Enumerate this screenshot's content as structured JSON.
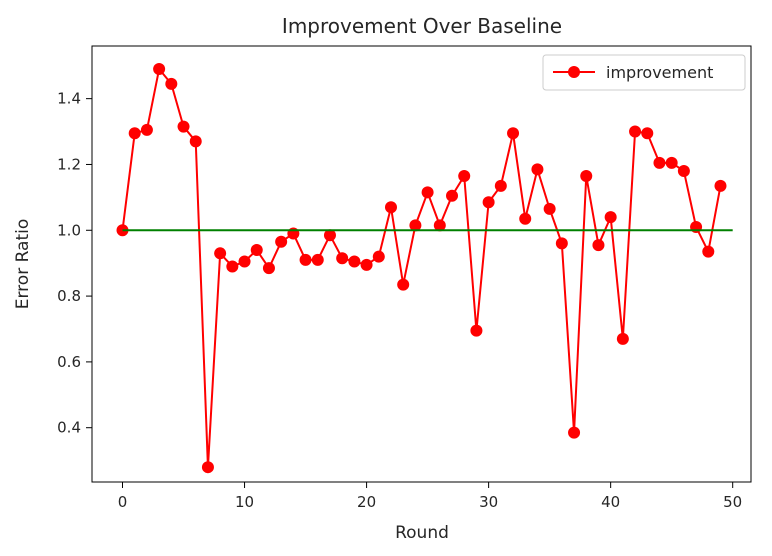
{
  "chart_data": {
    "type": "line",
    "title": "Improvement Over Baseline",
    "xlabel": "Round",
    "ylabel": "Error Ratio",
    "xlim": [
      -2.5,
      51.5
    ],
    "ylim": [
      0.235,
      1.56
    ],
    "xticks": [
      0,
      10,
      20,
      30,
      40,
      50
    ],
    "yticks": [
      0.4,
      0.6,
      0.8,
      1.0,
      1.2,
      1.4
    ],
    "ytick_labels": [
      "0.4",
      "0.6",
      "0.8",
      "1.0",
      "1.2",
      "1.4"
    ],
    "grid": false,
    "legend": {
      "placement": "top-right",
      "entries": [
        "improvement"
      ]
    },
    "series": [
      {
        "name": "improvement",
        "color": "#ff0000",
        "marker": "circle",
        "x": [
          0,
          1,
          2,
          3,
          4,
          5,
          6,
          7,
          8,
          9,
          10,
          11,
          12,
          13,
          14,
          15,
          16,
          17,
          18,
          19,
          20,
          21,
          22,
          23,
          24,
          25,
          26,
          27,
          28,
          29,
          30,
          31,
          32,
          33,
          34,
          35,
          36,
          37,
          38,
          39,
          40,
          41,
          42,
          43,
          44,
          45,
          46,
          47,
          48,
          49
        ],
        "values": [
          1.0,
          1.295,
          1.305,
          1.49,
          1.445,
          1.315,
          1.27,
          0.28,
          0.93,
          0.89,
          0.905,
          0.94,
          0.885,
          0.965,
          0.99,
          0.91,
          0.91,
          0.985,
          0.915,
          0.905,
          0.895,
          0.92,
          1.07,
          0.835,
          1.015,
          1.115,
          1.015,
          1.105,
          1.165,
          0.695,
          1.085,
          1.135,
          1.295,
          1.035,
          1.185,
          1.065,
          0.96,
          0.385,
          1.165,
          0.955,
          1.04,
          0.67,
          1.3,
          1.295,
          1.205,
          1.205,
          1.18,
          1.01,
          0.935,
          1.135
        ]
      },
      {
        "color": "#008000",
        "marker": "none",
        "x": [
          0,
          50
        ],
        "values": [
          1.0,
          1.0
        ]
      }
    ]
  }
}
